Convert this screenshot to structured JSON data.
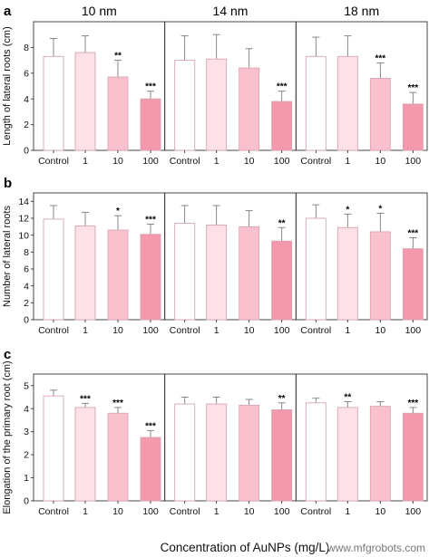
{
  "page": {
    "x_axis_title": "Concentration of AuNPs (mg/L)",
    "watermark": "www.mfgrobots.com"
  },
  "colors": {
    "bars": [
      "#ffffff",
      "#fde1e7",
      "#f9c1cd",
      "#f498ab"
    ],
    "bar_stroke": "#d7a6b0",
    "axis": "#333333"
  },
  "chart_data": [
    {
      "panel": "a",
      "type": "bar",
      "ylabel": "Length of lateral roots (cm)",
      "ylim": [
        0,
        10
      ],
      "yticks": [
        0,
        2,
        4,
        6,
        8
      ],
      "column_titles": [
        "10 nm",
        "14 nm",
        "18 nm"
      ],
      "categories": [
        "Control",
        "1",
        "10",
        "100"
      ],
      "groups": [
        {
          "name": "10 nm",
          "values": [
            7.3,
            7.6,
            5.7,
            4.0
          ],
          "errors": [
            1.4,
            1.3,
            1.3,
            0.6
          ],
          "sig": [
            "",
            "",
            "**",
            "***"
          ]
        },
        {
          "name": "14 nm",
          "values": [
            7.0,
            7.1,
            6.4,
            3.8
          ],
          "errors": [
            1.9,
            1.9,
            1.5,
            0.8
          ],
          "sig": [
            "",
            "",
            "",
            "***"
          ]
        },
        {
          "name": "18 nm",
          "values": [
            7.3,
            7.3,
            5.6,
            3.6
          ],
          "errors": [
            1.5,
            1.6,
            1.2,
            0.9
          ],
          "sig": [
            "",
            "",
            "***",
            "***"
          ]
        }
      ]
    },
    {
      "panel": "b",
      "type": "bar",
      "ylabel": "Number of lateral roots",
      "ylim": [
        0,
        15
      ],
      "yticks": [
        0,
        2,
        4,
        6,
        8,
        10,
        12,
        14
      ],
      "categories": [
        "Control",
        "1",
        "10",
        "100"
      ],
      "groups": [
        {
          "name": "10 nm",
          "values": [
            11.9,
            11.1,
            10.6,
            10.1
          ],
          "errors": [
            1.6,
            1.6,
            1.7,
            1.2
          ],
          "sig": [
            "",
            "",
            "*",
            "***"
          ]
        },
        {
          "name": "14 nm",
          "values": [
            11.4,
            11.2,
            11.0,
            9.3
          ],
          "errors": [
            2.1,
            2.3,
            1.9,
            1.6
          ],
          "sig": [
            "",
            "",
            "",
            "**"
          ]
        },
        {
          "name": "18 nm",
          "values": [
            12.0,
            10.9,
            10.4,
            8.4
          ],
          "errors": [
            1.6,
            1.6,
            2.2,
            1.3
          ],
          "sig": [
            "",
            "*",
            "*",
            "***"
          ]
        }
      ]
    },
    {
      "panel": "c",
      "type": "bar",
      "ylabel": "Elongation of the primary root (cm)",
      "ylim": [
        0,
        5.5
      ],
      "yticks": [
        0,
        1,
        2,
        3,
        4,
        5
      ],
      "categories": [
        "Control",
        "1",
        "10",
        "100"
      ],
      "groups": [
        {
          "name": "10 nm",
          "values": [
            4.55,
            4.05,
            3.8,
            2.75
          ],
          "errors": [
            0.25,
            0.18,
            0.25,
            0.3
          ],
          "sig": [
            "",
            "***",
            "***",
            "***"
          ]
        },
        {
          "name": "14 nm",
          "values": [
            4.2,
            4.2,
            4.15,
            3.95
          ],
          "errors": [
            0.3,
            0.3,
            0.25,
            0.3
          ],
          "sig": [
            "",
            "",
            "",
            "**"
          ]
        },
        {
          "name": "18 nm",
          "values": [
            4.25,
            4.05,
            4.1,
            3.8
          ],
          "errors": [
            0.2,
            0.25,
            0.2,
            0.25
          ],
          "sig": [
            "",
            "**",
            "",
            "***"
          ]
        }
      ]
    }
  ]
}
